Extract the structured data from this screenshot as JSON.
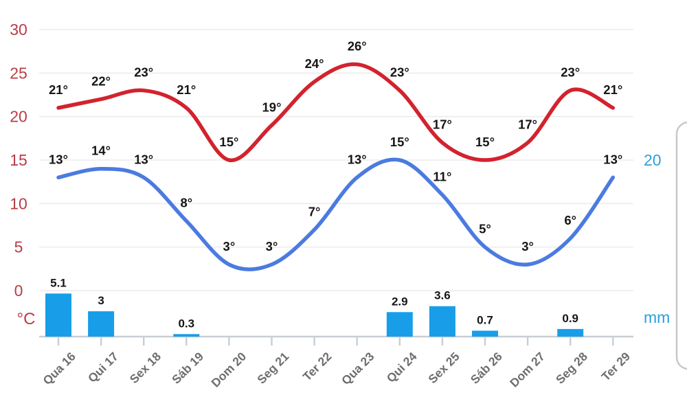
{
  "page": {
    "background": "#ffffff"
  },
  "chart_data": {
    "type": "line",
    "title": "",
    "categories": [
      "Qua 16",
      "Qui 17",
      "Sex 18",
      "Sáb 19",
      "Dom 20",
      "Seg 21",
      "Ter 22",
      "Qua 23",
      "Qui 24",
      "Sex 25",
      "Sáb 26",
      "Dom 27",
      "Seg 28",
      "Ter 29"
    ],
    "series": [
      {
        "name": "max-temperature",
        "type": "line",
        "unit": "°C",
        "color": "#d2232e",
        "values": [
          21,
          22,
          23,
          21,
          15,
          19,
          24,
          26,
          23,
          17,
          15,
          17,
          23,
          21
        ],
        "labels": [
          "21°",
          "22°",
          "23°",
          "21°",
          "15°",
          "19°",
          "24°",
          "26°",
          "23°",
          "17°",
          "15°",
          "17°",
          "23°",
          "21°"
        ]
      },
      {
        "name": "min-temperature",
        "type": "line",
        "unit": "°C",
        "color": "#4b7be0",
        "values": [
          13,
          14,
          13,
          8,
          3,
          3,
          7,
          13,
          15,
          11,
          5,
          3,
          6,
          13
        ],
        "labels": [
          "13°",
          "14°",
          "13°",
          "8°",
          "3°",
          "3°",
          "7°",
          "13°",
          "15°",
          "11°",
          "5°",
          "3°",
          "6°",
          "13°"
        ]
      },
      {
        "name": "precipitation",
        "type": "bar",
        "unit": "mm",
        "color": "#189ee9",
        "values": [
          5.1,
          3,
          0,
          0.3,
          0,
          0,
          0,
          0,
          2.9,
          3.6,
          0.7,
          0,
          0.9,
          0
        ],
        "labels": [
          "5.1",
          "3",
          "",
          "0.3",
          "",
          "",
          "",
          "",
          "2.9",
          "3.6",
          "0.7",
          "",
          "0.9",
          ""
        ]
      }
    ],
    "left_axis": {
      "unit_label": "°C",
      "ticks": [
        "30",
        "25",
        "20",
        "15",
        "10",
        "5",
        "0"
      ],
      "tick_values": [
        30,
        25,
        20,
        15,
        10,
        5,
        0
      ],
      "range": [
        0,
        30
      ],
      "color": "#b93c46"
    },
    "right_axis": {
      "unit_label": "mm",
      "ticks": [
        "20"
      ],
      "tick_values": [
        20
      ],
      "range": [
        0,
        20
      ],
      "color": "#2c9fdb"
    },
    "grid": true,
    "legend": "none",
    "colors": {
      "gridline": "#ececec",
      "axis_line": "#c9cdd4",
      "point_label": "#161616",
      "day_label": "#6d6d6d",
      "card_edge": "#c8c8c8"
    }
  }
}
